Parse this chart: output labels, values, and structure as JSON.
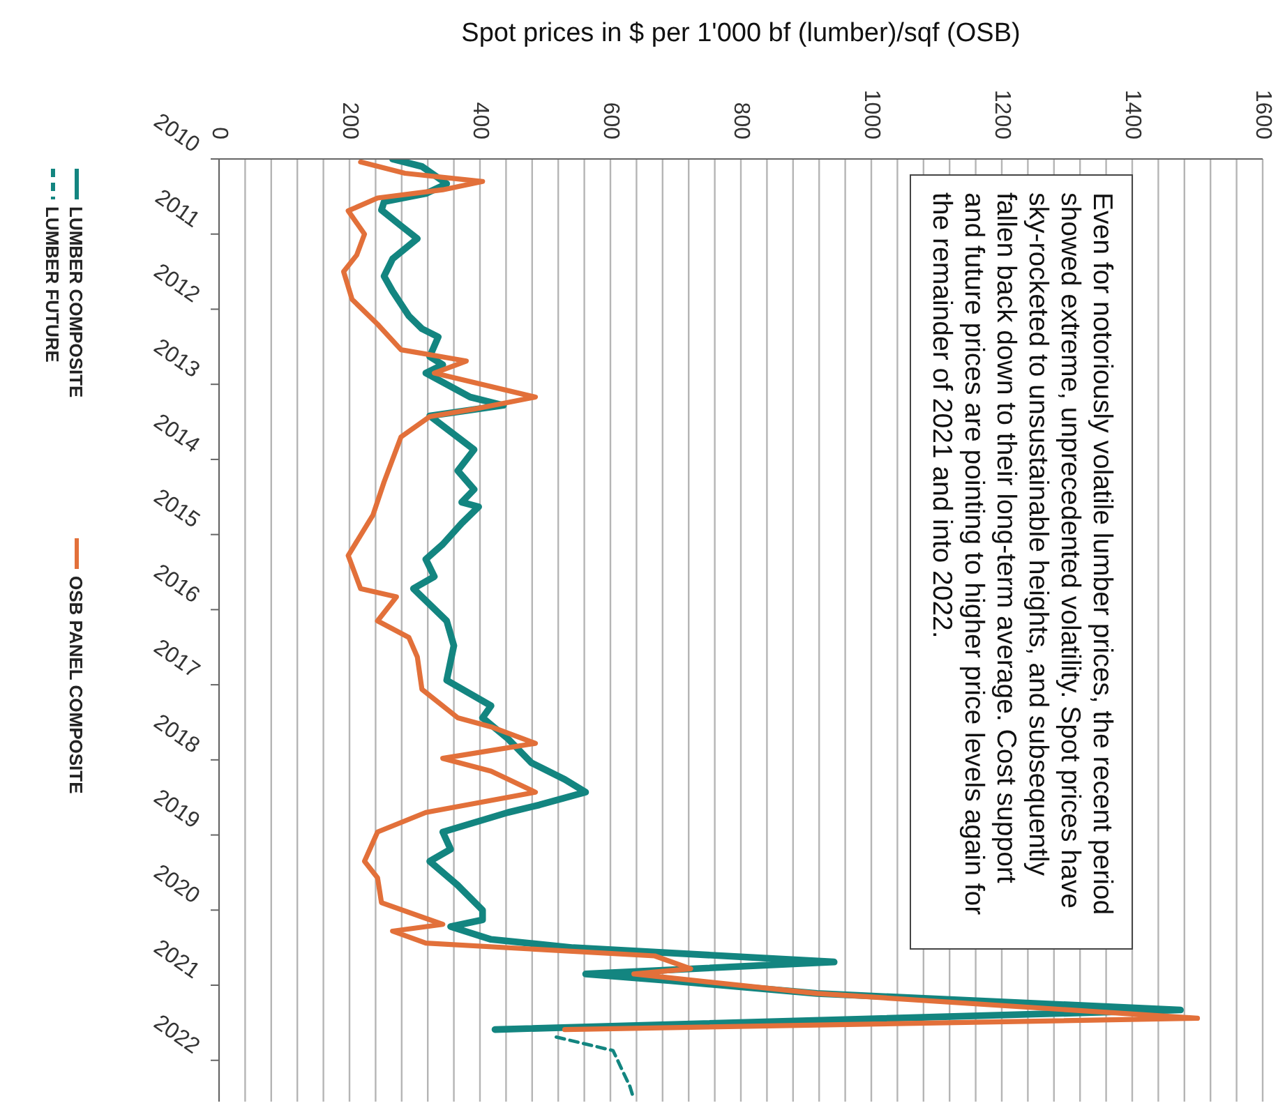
{
  "chart_data": {
    "type": "line",
    "orientation": "horizontal",
    "xlabel": "Spot prices in $ per 1'000 bf (lumber)/sqf (OSB)",
    "annotations": [
      "Even for notoriously volatile lumber prices, the recent period showed extreme, unprecedented volatility. Spot prices have sky-rocketed to unsustainable heights, and subsequently fallen back down to their long-term average. Cost support and future prices are pointing to higher price levels again for the remainder of 2021 and into 2022."
    ],
    "series": [
      {
        "name": "LUMBER COMPOSITE",
        "color": "#138580",
        "x": [
          2010.0,
          2010.1,
          2010.33,
          2010.46,
          2010.57,
          2010.68,
          2010.89,
          2011.06,
          2011.33,
          2011.56,
          2011.76,
          2012.09,
          2012.26,
          2012.37,
          2012.63,
          2012.74,
          2012.85,
          2013.17,
          2013.28,
          2013.42,
          2013.87,
          2014.15,
          2014.4,
          2014.57,
          2014.63,
          2014.85,
          2015.13,
          2015.33,
          2015.56,
          2015.72,
          2016.15,
          2016.48,
          2016.94,
          2017.28,
          2017.44,
          2017.72,
          2018.04,
          2018.26,
          2018.43,
          2018.6,
          2018.7,
          2018.96,
          2019.19,
          2019.35,
          2019.67,
          2020.0,
          2020.13,
          2020.22,
          2020.39,
          2020.5,
          2020.69,
          2020.85,
          2020.94,
          2021.11,
          2021.33,
          2021.59
        ],
        "values": [
          266,
          311,
          349,
          317,
          253,
          249,
          279,
          304,
          266,
          253,
          266,
          291,
          311,
          336,
          323,
          343,
          317,
          385,
          436,
          323,
          391,
          366,
          391,
          372,
          398,
          372,
          343,
          317,
          330,
          298,
          349,
          360,
          349,
          417,
          404,
          443,
          479,
          530,
          562,
          491,
          443,
          343,
          355,
          323,
          366,
          404,
          404,
          355,
          417,
          543,
          943,
          562,
          691,
          917,
          1474,
          423
        ]
      },
      {
        "name": "OSB PANEL COMPOSITE",
        "color": "#e2703a",
        "x": [
          2010.04,
          2010.19,
          2010.3,
          2010.41,
          2010.52,
          2010.69,
          2011.0,
          2011.28,
          2011.5,
          2011.87,
          2012.2,
          2012.54,
          2012.69,
          2012.85,
          2013.17,
          2013.33,
          2013.43,
          2013.7,
          2014.3,
          2014.74,
          2015.28,
          2015.72,
          2015.83,
          2016.15,
          2016.37,
          2016.63,
          2017.06,
          2017.44,
          2017.56,
          2017.78,
          2017.98,
          2018.15,
          2018.43,
          2018.7,
          2018.96,
          2019.35,
          2019.57,
          2019.9,
          2020.19,
          2020.28,
          2020.44,
          2020.61,
          2020.78,
          2020.85,
          2021.11,
          2021.44,
          2021.59
        ],
        "values": [
          217,
          285,
          404,
          343,
          243,
          198,
          223,
          211,
          191,
          204,
          243,
          279,
          379,
          330,
          485,
          391,
          323,
          279,
          253,
          236,
          198,
          217,
          272,
          243,
          291,
          304,
          311,
          366,
          417,
          485,
          343,
          417,
          485,
          317,
          243,
          223,
          243,
          249,
          343,
          266,
          317,
          668,
          723,
          636,
          917,
          1500,
          530
        ]
      },
      {
        "name": "LUMBER FUTURE",
        "color": "#138580",
        "line_style": "dashed",
        "x": [
          2021.69,
          2021.87,
          2022.35,
          2022.52
        ],
        "values": [
          517,
          604,
          630,
          636
        ]
      }
    ],
    "ylim": [
      2022.55,
      2010
    ],
    "yticks": [
      2010,
      2011,
      2012,
      2013,
      2014,
      2015,
      2016,
      2017,
      2018,
      2019,
      2020,
      2021,
      2022
    ],
    "xlim": [
      0,
      1600
    ],
    "xticks": [
      0,
      {
        "value": 40,
        "label": null
      },
      {
        "value": 80,
        "label": null
      },
      {
        "value": 120,
        "label": null
      },
      {
        "value": 160,
        "label": null
      },
      200,
      {
        "value": 240,
        "label": null
      },
      {
        "value": 280,
        "label": null
      },
      {
        "value": 320,
        "label": null
      },
      {
        "value": 360,
        "label": null
      },
      400,
      {
        "value": 440,
        "label": null
      },
      {
        "value": 480,
        "label": null
      },
      {
        "value": 520,
        "label": null
      },
      {
        "value": 560,
        "label": null
      },
      600,
      {
        "value": 640,
        "label": null
      },
      {
        "value": 680,
        "label": null
      },
      {
        "value": 720,
        "label": null
      },
      {
        "value": 760,
        "label": null
      },
      800,
      {
        "value": 840,
        "label": null
      },
      {
        "value": 880,
        "label": null
      },
      {
        "value": 920,
        "label": null
      },
      {
        "value": 960,
        "label": null
      },
      1000,
      {
        "value": 1040,
        "label": null
      },
      {
        "value": 1080,
        "label": null
      },
      {
        "value": 1120,
        "label": null
      },
      {
        "value": 1160,
        "label": null
      },
      1200,
      {
        "value": 1240,
        "label": null
      },
      {
        "value": 1280,
        "label": null
      },
      {
        "value": 1320,
        "label": null
      },
      {
        "value": 1360,
        "label": null
      },
      1400,
      {
        "value": 1440,
        "label": null
      },
      {
        "value": 1480,
        "label": null
      },
      {
        "value": 1520,
        "label": null
      },
      {
        "value": 1560,
        "label": null
      },
      1600
    ],
    "grid": "x",
    "legend": "left",
    "marker": "none",
    "line_style": "solid"
  }
}
